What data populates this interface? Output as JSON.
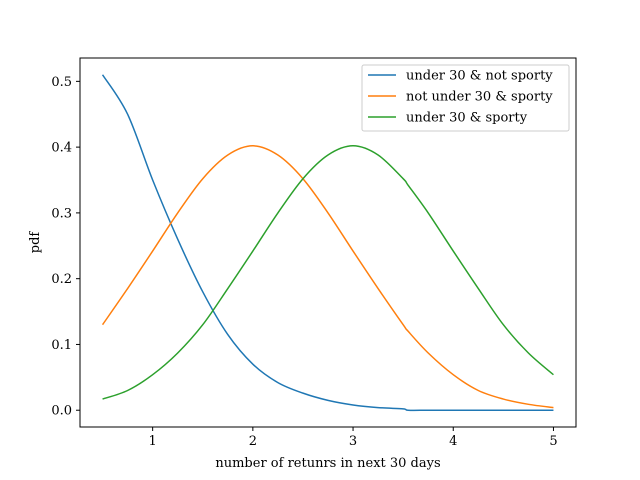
{
  "chart_data": {
    "type": "line",
    "title": "",
    "xlabel": "number of retunrs in next 30 days",
    "ylabel": "pdf",
    "xlim": [
      0.275,
      5.225
    ],
    "ylim": [
      -0.0255,
      0.5355
    ],
    "xticks": [
      1,
      2,
      3,
      4,
      5
    ],
    "xtick_labels": [
      "1",
      "2",
      "3",
      "4",
      "5"
    ],
    "yticks": [
      0.0,
      0.1,
      0.2,
      0.3,
      0.4,
      0.5
    ],
    "ytick_labels": [
      "0.0",
      "0.1",
      "0.2",
      "0.3",
      "0.4",
      "0.5"
    ],
    "grid": false,
    "legend_position": "top-right",
    "x": [
      0.5,
      0.75,
      1.0,
      1.25,
      1.5,
      1.75,
      2.0,
      2.25,
      2.5,
      2.75,
      3.0,
      3.25,
      3.5,
      3.55,
      3.75,
      4.0,
      4.25,
      4.5,
      4.75,
      5.0
    ],
    "series": [
      {
        "name": "under 30 & not sporty",
        "color": "#1f77b4",
        "values": [
          0.51,
          0.45,
          0.35,
          0.26,
          0.18,
          0.115,
          0.07,
          0.042,
          0.026,
          0.015,
          0.008,
          0.004,
          0.002,
          0.0,
          0.0,
          0.0,
          0.0,
          0.0,
          0.0,
          0.0
        ]
      },
      {
        "name": "not under 30 & sporty",
        "color": "#ff7f0e",
        "values": [
          0.13,
          0.185,
          0.242,
          0.3,
          0.352,
          0.388,
          0.402,
          0.388,
          0.352,
          0.3,
          0.242,
          0.185,
          0.13,
          0.12,
          0.087,
          0.054,
          0.03,
          0.017,
          0.009,
          0.004
        ]
      },
      {
        "name": "under 30 & sporty",
        "color": "#2ca02c",
        "values": [
          0.017,
          0.03,
          0.054,
          0.087,
          0.13,
          0.185,
          0.242,
          0.3,
          0.352,
          0.388,
          0.402,
          0.388,
          0.352,
          0.342,
          0.3,
          0.242,
          0.185,
          0.13,
          0.087,
          0.054
        ]
      }
    ]
  }
}
